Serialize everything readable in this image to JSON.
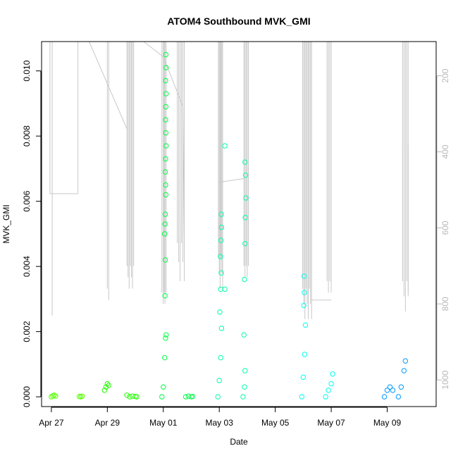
{
  "chart_data": {
    "type": "scatter",
    "title": "ATOM4 Southbound MVK_GMI",
    "xlabel": "Date",
    "ylabel": "MVK_GMI",
    "xlim_days": [
      -0.35,
      13.75
    ],
    "ylim": [
      -0.0003,
      0.0109
    ],
    "x_ticks": [
      {
        "label": "Apr 27",
        "day": 0
      },
      {
        "label": "Apr 29",
        "day": 2
      },
      {
        "label": "May 01",
        "day": 4
      },
      {
        "label": "May 03",
        "day": 6
      },
      {
        "label": "May 05",
        "day": 8
      },
      {
        "label": "May 07",
        "day": 10
      },
      {
        "label": "May 09",
        "day": 12
      }
    ],
    "y_ticks": [
      {
        "label": "0.000",
        "value": 0.0
      },
      {
        "label": "0.002",
        "value": 0.002
      },
      {
        "label": "0.004",
        "value": 0.004
      },
      {
        "label": "0.006",
        "value": 0.006
      },
      {
        "label": "0.008",
        "value": 0.008
      },
      {
        "label": "0.010",
        "value": 0.01
      }
    ],
    "secondary_axis": {
      "label": "",
      "reversed": true,
      "range": [
        1070,
        110
      ],
      "ticks": [
        "200",
        "400",
        "600",
        "800",
        "1000"
      ],
      "line_color": "#c8c8c8"
    },
    "grid": false,
    "legend": "none",
    "series": [
      {
        "color": "#55ff00",
        "points": [
          [
            0.0,
            0.0
          ],
          [
            0.05,
            3e-05
          ],
          [
            0.1,
            5e-05
          ],
          [
            0.15,
            2e-05
          ],
          [
            1.0,
            1e-05
          ],
          [
            1.05,
            0.0
          ],
          [
            1.1,
            2e-05
          ]
        ]
      },
      {
        "color": "#22ff00",
        "points": [
          [
            1.9,
            0.0002
          ],
          [
            1.95,
            0.0003
          ],
          [
            2.0,
            0.0004
          ],
          [
            2.05,
            0.00035
          ],
          [
            2.7,
            5e-05
          ],
          [
            2.8,
            0.0
          ],
          [
            2.9,
            2e-05
          ],
          [
            3.0,
            1e-05
          ],
          [
            3.05,
            0.0
          ]
        ]
      },
      {
        "color": "#00ff44",
        "points": [
          [
            3.95,
            0.0
          ],
          [
            4.0,
            0.0003
          ],
          [
            4.05,
            0.0012
          ],
          [
            4.08,
            0.0018
          ],
          [
            4.1,
            0.0019
          ],
          [
            4.06,
            0.0031
          ],
          [
            4.07,
            0.0042
          ],
          [
            4.05,
            0.005
          ],
          [
            4.06,
            0.0053
          ],
          [
            4.07,
            0.0056
          ],
          [
            4.09,
            0.0062
          ],
          [
            4.08,
            0.0065
          ],
          [
            4.07,
            0.0069
          ],
          [
            4.08,
            0.0073
          ],
          [
            4.1,
            0.0077
          ],
          [
            4.09,
            0.0081
          ],
          [
            4.08,
            0.0085
          ],
          [
            4.09,
            0.0089
          ],
          [
            4.1,
            0.0093
          ],
          [
            4.08,
            0.0097
          ],
          [
            4.1,
            0.0101
          ],
          [
            4.09,
            0.0105
          ],
          [
            4.8,
            0.0
          ],
          [
            4.9,
            2e-05
          ],
          [
            5.0,
            0.0
          ],
          [
            5.05,
            1e-05
          ]
        ]
      },
      {
        "color": "#00ffaa",
        "points": [
          [
            5.95,
            0.0
          ],
          [
            6.0,
            0.0005
          ],
          [
            6.05,
            0.0012
          ],
          [
            6.08,
            0.0021
          ],
          [
            6.02,
            0.0026
          ],
          [
            6.05,
            0.0033
          ],
          [
            6.07,
            0.0038
          ],
          [
            6.04,
            0.0043
          ],
          [
            6.06,
            0.0048
          ],
          [
            6.08,
            0.0052
          ],
          [
            6.07,
            0.0056
          ],
          [
            6.2,
            0.0033
          ],
          [
            6.2,
            0.0077
          ],
          [
            6.85,
            0.0
          ],
          [
            6.9,
            0.0003
          ],
          [
            6.92,
            0.0008
          ],
          [
            6.88,
            0.0019
          ],
          [
            6.9,
            0.0036
          ],
          [
            6.92,
            0.0047
          ],
          [
            6.93,
            0.0055
          ],
          [
            6.95,
            0.0061
          ],
          [
            6.94,
            0.0068
          ],
          [
            6.92,
            0.0072
          ]
        ]
      },
      {
        "color": "#00ffee",
        "points": [
          [
            8.95,
            0.0
          ],
          [
            9.0,
            0.0006
          ],
          [
            9.05,
            0.0013
          ],
          [
            9.08,
            0.0022
          ],
          [
            9.02,
            0.0028
          ],
          [
            9.04,
            0.0032
          ],
          [
            9.03,
            0.0037
          ],
          [
            9.8,
            0.0
          ],
          [
            9.9,
            0.0002
          ],
          [
            10.0,
            0.0004
          ],
          [
            10.05,
            0.0007
          ]
        ]
      },
      {
        "color": "#0099ff",
        "points": [
          [
            11.9,
            0.0
          ],
          [
            12.0,
            0.0002
          ],
          [
            12.1,
            0.0003
          ],
          [
            12.2,
            0.0002
          ],
          [
            12.4,
            0.0
          ],
          [
            12.5,
            0.0003
          ],
          [
            12.6,
            0.0008
          ],
          [
            12.65,
            0.0011
          ]
        ]
      }
    ]
  }
}
